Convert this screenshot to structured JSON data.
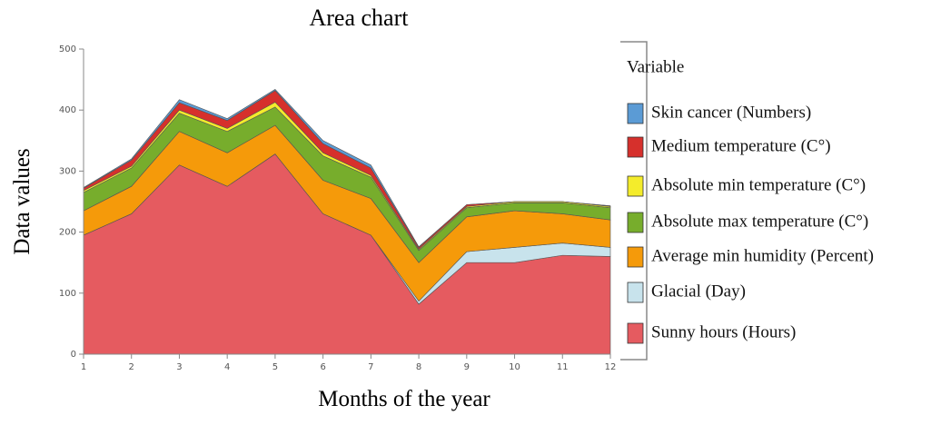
{
  "chart_data": {
    "type": "area",
    "title": "Area chart",
    "x_label": "Months of the year",
    "y_label": "Data values",
    "legend_title": "Variable",
    "x": [
      1,
      2,
      3,
      4,
      5,
      6,
      7,
      8,
      9,
      10,
      11,
      12
    ],
    "xlim": [
      1,
      12
    ],
    "xticks": [
      1,
      2,
      3,
      4,
      5,
      6,
      7,
      8,
      9,
      10,
      11,
      12
    ],
    "ylim": [
      0,
      500
    ],
    "yticks": [
      0,
      100,
      200,
      300,
      400,
      500
    ],
    "series": [
      {
        "name": "Sunny hours (Hours)",
        "color": "#e55b60",
        "values": [
          195,
          230,
          310,
          275,
          328,
          230,
          195,
          82,
          150,
          150,
          162,
          160
        ]
      },
      {
        "name": "Glacial (Day)",
        "color": "#c8e3ec",
        "values": [
          0,
          0,
          0,
          0,
          0,
          0,
          0,
          5,
          18,
          25,
          20,
          15
        ]
      },
      {
        "name": "Average min humidity (Percent)",
        "color": "#f59a0a",
        "values": [
          40,
          45,
          55,
          55,
          47,
          55,
          60,
          63,
          57,
          60,
          48,
          45
        ]
      },
      {
        "name": "Absolute max temperature (C°)",
        "color": "#77ad2c",
        "values": [
          30,
          30,
          30,
          35,
          30,
          40,
          35,
          20,
          15,
          13,
          18,
          20
        ]
      },
      {
        "name": "Absolute min temperature (C°)",
        "color": "#f4ec2b",
        "values": [
          3,
          3,
          5,
          5,
          8,
          5,
          3,
          2,
          2,
          2,
          2,
          2
        ]
      },
      {
        "name": "Medium temperature (C°)",
        "color": "#d6302c",
        "values": [
          4,
          10,
          12,
          13,
          19,
          15,
          12,
          3,
          3,
          0,
          0,
          1
        ]
      },
      {
        "name": "Skin cancer (Numbers)",
        "color": "#5b9bd5",
        "values": [
          1,
          2,
          5,
          3,
          2,
          5,
          5,
          1,
          0,
          0,
          0,
          0
        ]
      }
    ]
  }
}
